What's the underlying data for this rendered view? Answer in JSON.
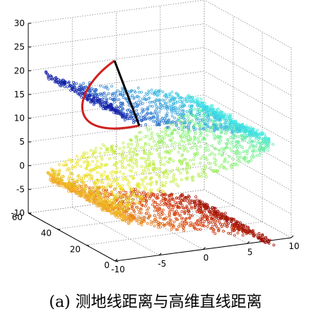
{
  "chart_data": {
    "type": "scatter",
    "dimensions": 3,
    "title": "",
    "xlabel": "",
    "ylabel": "",
    "zlabel": "",
    "xlim": [
      -10,
      10
    ],
    "ylim": [
      0,
      60
    ],
    "zlim": [
      -10,
      30
    ],
    "x_ticks": [
      "-10",
      "-5",
      "0",
      "5",
      "10"
    ],
    "y_ticks": [
      "0",
      "20",
      "40",
      "60"
    ],
    "z_ticks": [
      "-10",
      "-5",
      "0",
      "5",
      "10",
      "15",
      "20",
      "25",
      "30"
    ],
    "grid": true,
    "colormap": "jet",
    "series": [
      {
        "kind": "points",
        "description_shape": "S-shaped manifold (S-curve)",
        "color_by": "arc position along S",
        "colors": [
          "#8b0000",
          "#d43a0c",
          "#f0a020",
          "#e8e820",
          "#7cf07c",
          "#40e8e8",
          "#3a8fd8",
          "#1010a0"
        ]
      },
      {
        "kind": "curve",
        "label": "geodesic",
        "color": "#d02020"
      },
      {
        "kind": "segment",
        "label": "straight-line",
        "color": "#000000"
      }
    ]
  },
  "caption": "(a) 测地线距离与高维直线距离"
}
